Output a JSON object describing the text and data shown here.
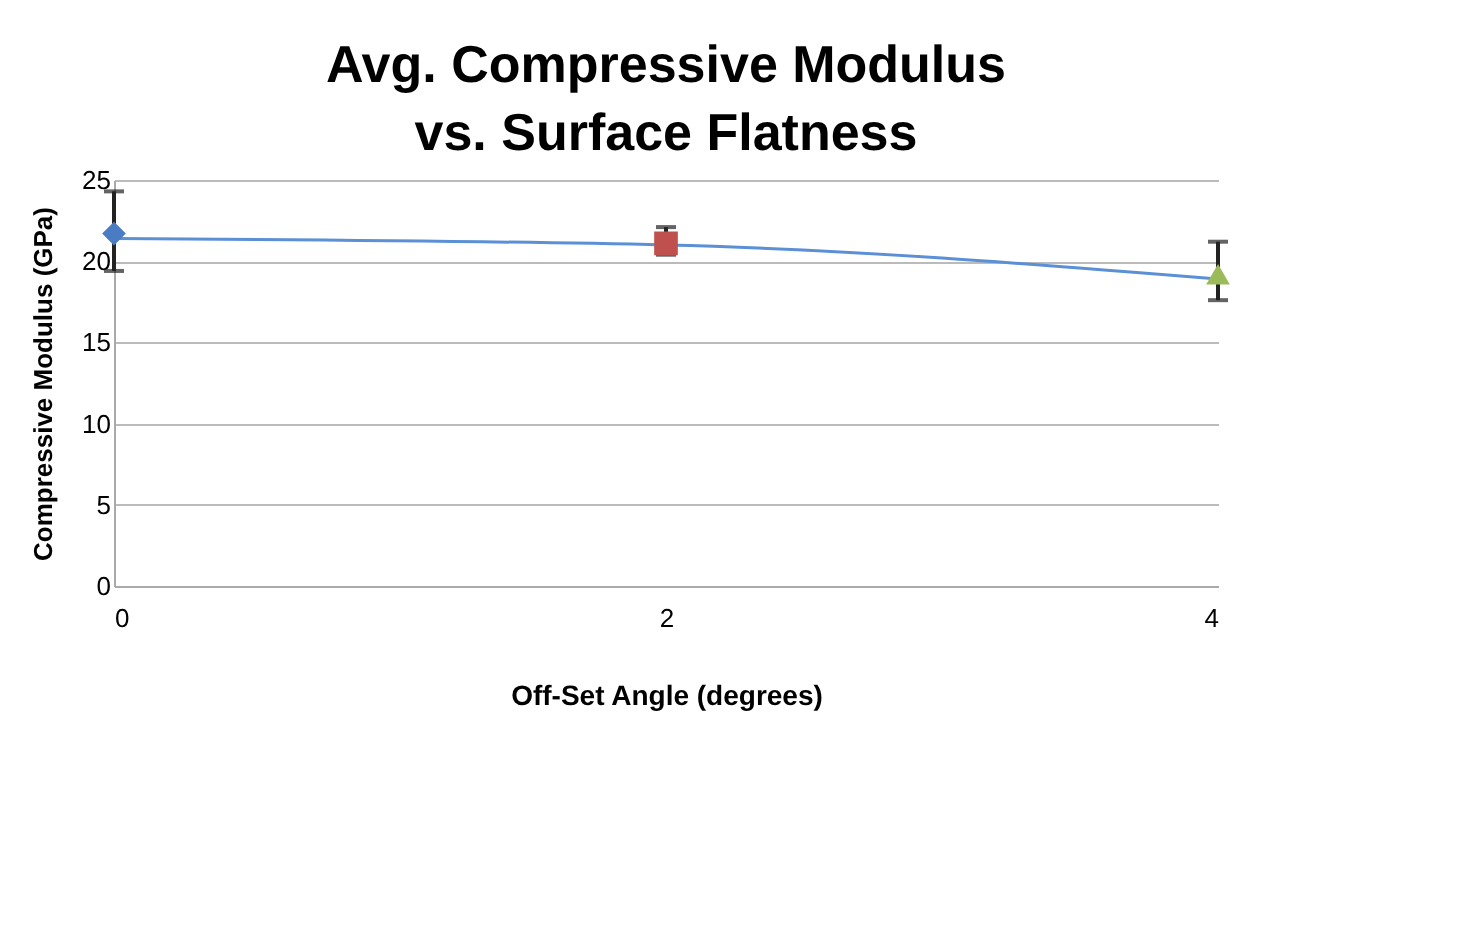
{
  "chart_data": {
    "type": "scatter",
    "title": "Avg. Compressive Modulus vs. Surface Flatness",
    "xlabel": "Off-Set Angle (degrees)",
    "ylabel": "Compressive Modulus (GPa)",
    "xlim": [
      0,
      4
    ],
    "xticks": [
      0,
      2,
      4
    ],
    "ylim": [
      0,
      25
    ],
    "yticks": [
      0,
      5,
      10,
      15,
      20,
      25
    ],
    "grid": "y",
    "series": [
      {
        "type": "line",
        "color": "#5b8fd6",
        "x": [
          0,
          2,
          4
        ],
        "values": [
          21.4,
          21.0,
          18.9
        ],
        "marker": "none"
      },
      {
        "color": "#4a7cc4",
        "x": [
          0
        ],
        "values": [
          21.7
        ],
        "errors": [
          [
            19.4,
            24.3
          ]
        ],
        "marker": "diamond"
      },
      {
        "color": "#c0504d",
        "x": [
          2
        ],
        "values": [
          21.1
        ],
        "errors": [
          [
            20.4,
            22.1
          ]
        ],
        "marker": "square"
      },
      {
        "color": "#9bbb59",
        "x": [
          4
        ],
        "values": [
          19.2
        ],
        "errors": [
          [
            17.6,
            21.2
          ]
        ],
        "marker": "triangle"
      }
    ]
  }
}
